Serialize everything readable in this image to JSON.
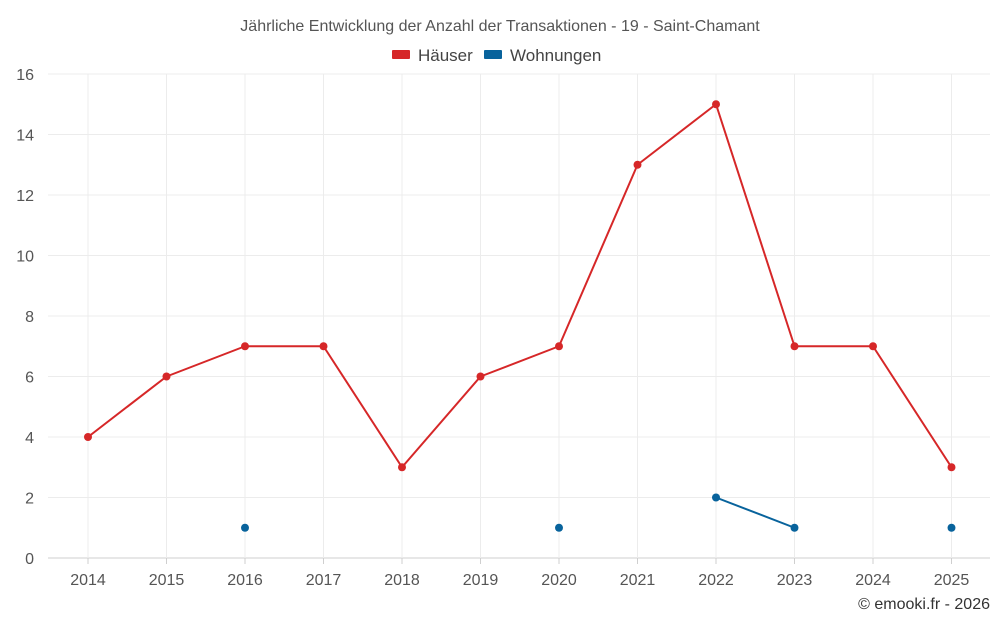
{
  "chart_data": {
    "type": "line",
    "title": "Jährliche Entwicklung der Anzahl der Transaktionen - 19 - Saint-Chamant",
    "xlabel": "",
    "ylabel": "",
    "categories": [
      "2014",
      "2015",
      "2016",
      "2017",
      "2018",
      "2019",
      "2020",
      "2021",
      "2022",
      "2023",
      "2024",
      "2025"
    ],
    "ylim": [
      0,
      16
    ],
    "yticks": [
      0,
      2,
      4,
      6,
      8,
      10,
      12,
      14,
      16
    ],
    "grid": true,
    "legend_position": "top-center",
    "series": [
      {
        "name": "Häuser",
        "color": "#d62728",
        "values": [
          4,
          6,
          7,
          7,
          3,
          6,
          7,
          13,
          15,
          7,
          7,
          3
        ]
      },
      {
        "name": "Wohnungen",
        "color": "#08639c",
        "values": [
          null,
          null,
          1,
          null,
          null,
          null,
          1,
          null,
          2,
          1,
          null,
          1
        ]
      }
    ]
  },
  "credit": "© emooki.fr - 2026"
}
